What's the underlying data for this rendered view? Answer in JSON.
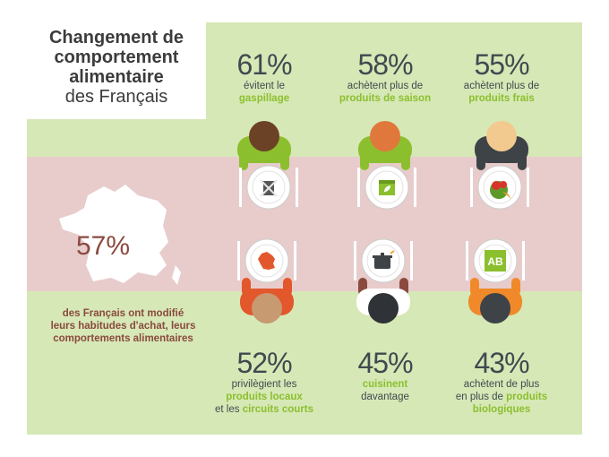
{
  "title": {
    "line1": "Changement de",
    "line2": "comportement",
    "line3": "alimentaire",
    "line4": "des Français"
  },
  "france": {
    "percent": "57%",
    "text": "des Français ont modifié leurs habitudes d'achat, leurs comportements alimentaires"
  },
  "top_stats": [
    {
      "percent": "61%",
      "text": "évitent le",
      "highlight": "gaspillage",
      "icon": "trash-crossed-icon"
    },
    {
      "percent": "58%",
      "text": "achètent plus de",
      "highlight": "produits de saison",
      "icon": "calendar-leaf-icon"
    },
    {
      "percent": "55%",
      "text": "achètent plus de",
      "highlight": "produits frais",
      "icon": "vegetables-icon"
    }
  ],
  "bottom_stats": [
    {
      "percent": "52%",
      "text1": "privilègient les",
      "highlight1": "produits locaux",
      "text2": "et les",
      "highlight2": "circuits courts",
      "icon": "france-map-icon"
    },
    {
      "percent": "45%",
      "highlight": "cuisinent",
      "text": "davantage",
      "icon": "cooking-pot-icon"
    },
    {
      "percent": "43%",
      "text1": "achètent de plus",
      "text2": "en plus de",
      "highlight1": "produits",
      "highlight2": "biologiques",
      "icon": "ab-label-icon"
    }
  ],
  "colors": {
    "green_bg": "#d6e8b6",
    "pink_band": "#e7cccb",
    "accent_green": "#8cbf2e",
    "france_text": "#8a4a3f"
  }
}
